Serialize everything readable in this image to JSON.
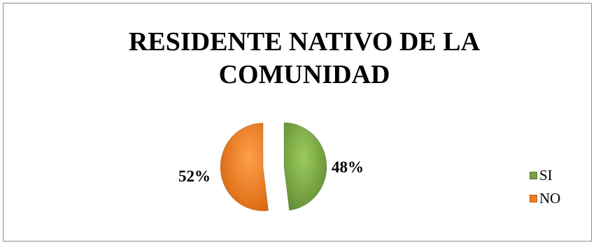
{
  "chart_data": {
    "type": "pie",
    "title": "RESIDENTE NATIVO DE LA COMUNIDAD",
    "slices": [
      {
        "label": "SI",
        "value": 48,
        "display": "48%",
        "color": "#77a043"
      },
      {
        "label": "NO",
        "value": 52,
        "display": "52%",
        "color": "#ef7d22"
      }
    ],
    "legend_position": "right",
    "exploded": true
  }
}
